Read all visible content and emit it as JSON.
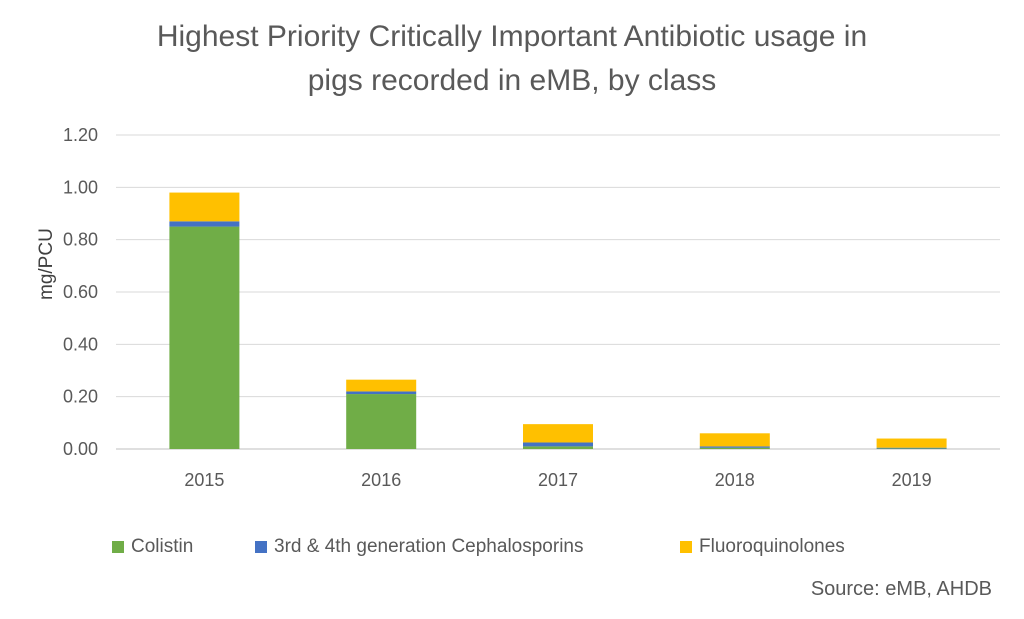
{
  "chart_data": {
    "type": "bar",
    "stacked": true,
    "title_line1": "Highest Priority Critically Important Antibiotic usage in",
    "title_line2": "pigs recorded in eMB, by class",
    "ylabel": "mg/PCU",
    "xlabel": "",
    "categories": [
      "2015",
      "2016",
      "2017",
      "2018",
      "2019"
    ],
    "ylim": [
      0,
      1.2
    ],
    "yticks": [
      "0.00",
      "0.20",
      "0.40",
      "0.60",
      "0.80",
      "1.00",
      "1.20"
    ],
    "grid": true,
    "legend_position": "bottom",
    "series": [
      {
        "name": "Colistin",
        "color": "#70AD47",
        "values": [
          0.85,
          0.21,
          0.01,
          0.005,
          0.002
        ]
      },
      {
        "name": "3rd & 4th generation Cephalosporins",
        "color": "#4472C4",
        "values": [
          0.02,
          0.01,
          0.015,
          0.005,
          0.003
        ]
      },
      {
        "name": "Fluoroquinolones",
        "color": "#FFC000",
        "values": [
          0.11,
          0.045,
          0.07,
          0.05,
          0.035
        ]
      }
    ],
    "source": "Source: eMB, AHDB"
  }
}
